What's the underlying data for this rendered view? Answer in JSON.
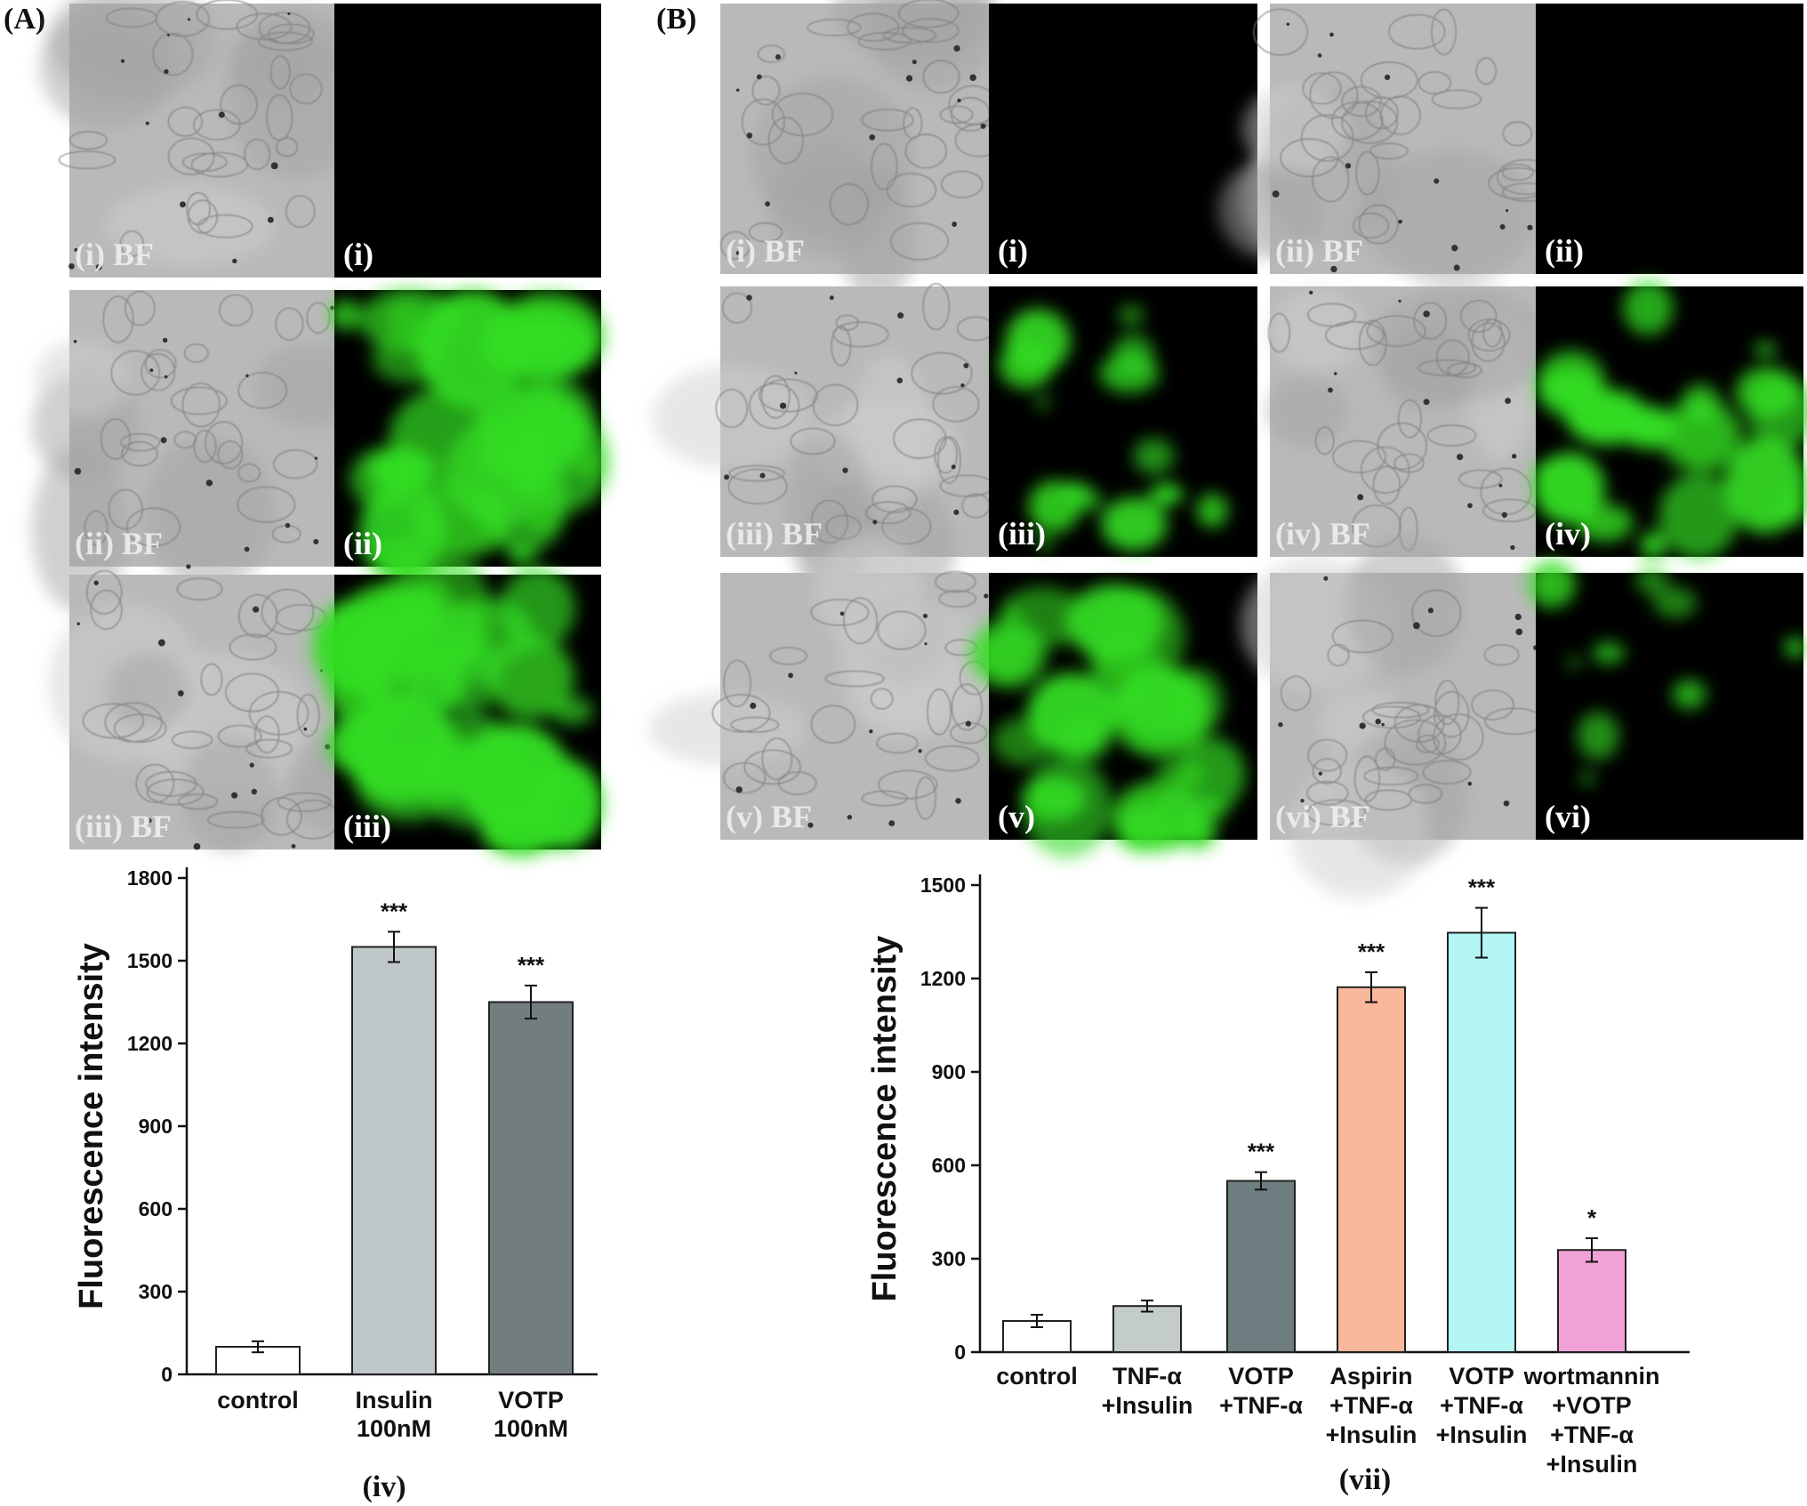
{
  "panels": {
    "a_label": "(A)",
    "b_label": "(B)",
    "a_images": [
      {
        "bf": "(i) BF",
        "fl": "(i)",
        "level": 0.0
      },
      {
        "bf": "(ii) BF",
        "fl": "(ii)",
        "level": 0.95
      },
      {
        "bf": "(iii) BF",
        "fl": "(iii)",
        "level": 0.9
      }
    ],
    "b_images": [
      {
        "bf": "(i) BF",
        "fl": "(i)",
        "level": 0.0
      },
      {
        "bf": "(ii) BF",
        "fl": "(ii)",
        "level": 0.0
      },
      {
        "bf": "(iii) BF",
        "fl": "(iii)",
        "level": 0.35
      },
      {
        "bf": "(iv) BF",
        "fl": "(iv)",
        "level": 0.6
      },
      {
        "bf": "(v) BF",
        "fl": "(v)",
        "level": 0.8
      },
      {
        "bf": "(vi) BF",
        "fl": "(vi)",
        "level": 0.15
      }
    ]
  },
  "colors": {
    "fluorescence_green": "#33dd22",
    "bf_gray": "#b9b9b9"
  },
  "chart_data": [
    {
      "type": "bar",
      "panel": "A",
      "sublabel": "(iv)",
      "ylabel": "Fluorescence  intensity",
      "ylim": [
        0,
        1800
      ],
      "yticks": [
        0,
        300,
        600,
        900,
        1200,
        1500,
        1800
      ],
      "categories": [
        [
          "control"
        ],
        [
          "Insulin",
          "100nM"
        ],
        [
          "VOTP",
          "100nM"
        ]
      ],
      "values": [
        100,
        1550,
        1350
      ],
      "errors": [
        20,
        55,
        60
      ],
      "significance": [
        "",
        "***",
        "***"
      ],
      "colors": [
        "#ffffff",
        "#bfc7c8",
        "#737d7f"
      ],
      "grid": false
    },
    {
      "type": "bar",
      "panel": "B",
      "sublabel": "(vii)",
      "ylabel": "Fluorescence intensity",
      "ylim": [
        0,
        1500
      ],
      "yticks": [
        0,
        300,
        600,
        900,
        1200,
        1500
      ],
      "categories": [
        [
          "control"
        ],
        [
          "TNF-α",
          "+Insulin"
        ],
        [
          "VOTP",
          "+TNF-α"
        ],
        [
          "Aspirin",
          "+TNF-α",
          "+Insulin"
        ],
        [
          "VOTP",
          "+TNF-α",
          "+Insulin"
        ],
        [
          "wortmannin",
          "+VOTP",
          "+TNF-α",
          "+Insulin"
        ]
      ],
      "values": [
        100,
        148,
        550,
        1172,
        1347,
        328
      ],
      "errors": [
        20,
        18,
        28,
        48,
        80,
        38
      ],
      "significance": [
        "",
        "",
        "***",
        "***",
        "***",
        "*"
      ],
      "colors": [
        "#ffffff",
        "#c3cbcb",
        "#6e7d80",
        "#f9b79c",
        "#b2f5f3",
        "#f0a2d7"
      ],
      "grid": false
    }
  ]
}
